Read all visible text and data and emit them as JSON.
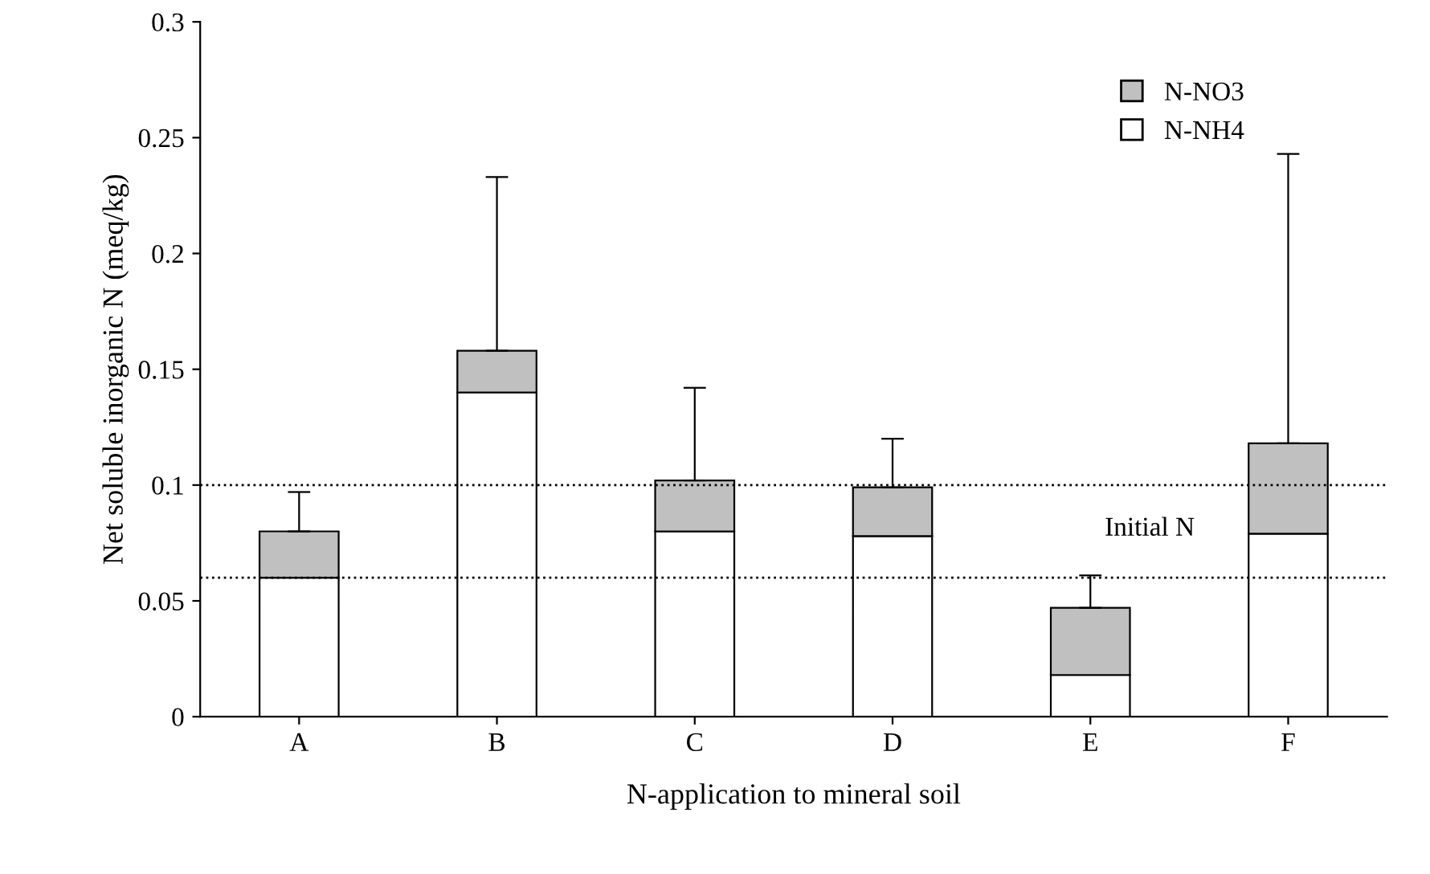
{
  "chart_data": {
    "type": "bar",
    "stacked": true,
    "xlabel": "N-application to mineral soil",
    "ylabel": "Net soluble inorganic N (meq/kg)",
    "categories": [
      "A",
      "B",
      "C",
      "D",
      "E",
      "F"
    ],
    "series": [
      {
        "name": "N-NH4",
        "color": "#ffffff",
        "values": [
          0.06,
          0.14,
          0.08,
          0.078,
          0.018,
          0.079
        ]
      },
      {
        "name": "N-NO3",
        "color": "#c0c0c0",
        "values": [
          0.02,
          0.018,
          0.022,
          0.021,
          0.029,
          0.039
        ],
        "errors": [
          [
            0.08,
            0.097
          ],
          [
            0.158,
            0.233
          ],
          [
            0.102,
            0.142
          ],
          [
            0.099,
            0.12
          ],
          [
            0.047,
            0.061
          ],
          [
            0.118,
            0.243
          ]
        ]
      }
    ],
    "ylim": [
      0,
      0.3
    ],
    "yticks": [
      0,
      0.05,
      0.1,
      0.15,
      0.2,
      0.25,
      0.3
    ],
    "ref_lines": [
      {
        "axis": "y",
        "value": 0.1,
        "line_style": "dotted"
      },
      {
        "axis": "y",
        "value": 0.06,
        "line_style": "dotted"
      }
    ],
    "annotations": [
      "Initial N"
    ],
    "legend": "top right",
    "grid": false
  }
}
